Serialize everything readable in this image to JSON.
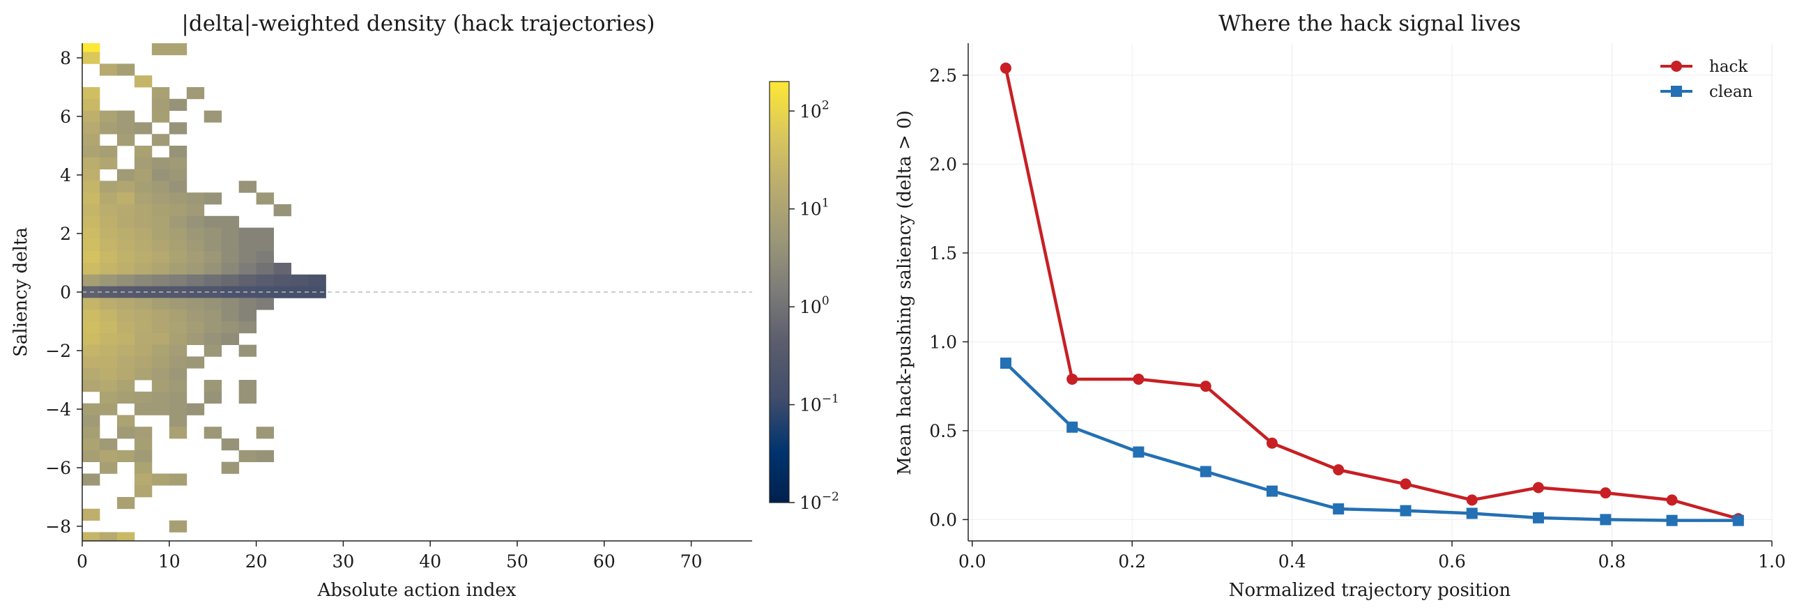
{
  "chart_data": [
    {
      "type": "heatmap",
      "title": "|delta|-weighted density (hack trajectories)",
      "xlabel": "Absolute action index",
      "ylabel": "Saliency delta",
      "xlim": [
        0,
        77
      ],
      "ylim": [
        -8.5,
        8.5
      ],
      "xticks": [
        0,
        10,
        20,
        30,
        40,
        50,
        60,
        70
      ],
      "yticks": [
        -8,
        -6,
        -4,
        -2,
        0,
        2,
        4,
        6,
        8
      ],
      "bin_width_x": 2,
      "bin_height_y": 0.4,
      "reference_line": 0,
      "colorbar": {
        "scale": "log",
        "colormap": "cividis",
        "vmin": 0.01,
        "vmax": 200,
        "ticks": [
          {
            "base": "10",
            "exp": "−2",
            "value": 0.01
          },
          {
            "base": "10",
            "exp": "−1",
            "value": 0.1
          },
          {
            "base": "10",
            "exp": "0",
            "value": 1
          },
          {
            "base": "10",
            "exp": "1",
            "value": 10
          },
          {
            "base": "10",
            "exp": "2",
            "value": 100
          }
        ]
      },
      "cells": [
        [
          0,
          8.2,
          200
        ],
        [
          0,
          7.8,
          60
        ],
        [
          2,
          7.4,
          15
        ],
        [
          4,
          7.4,
          8
        ],
        [
          8,
          8.2,
          10
        ],
        [
          10,
          8.2,
          10
        ],
        [
          6,
          7.0,
          25
        ],
        [
          0,
          6.6,
          40
        ],
        [
          8,
          6.6,
          9
        ],
        [
          12,
          6.6,
          6
        ],
        [
          0,
          6.2,
          30
        ],
        [
          8,
          6.2,
          7
        ],
        [
          10,
          6.2,
          4
        ],
        [
          0,
          5.8,
          20
        ],
        [
          2,
          5.8,
          10
        ],
        [
          4,
          5.8,
          6
        ],
        [
          8,
          5.8,
          8
        ],
        [
          14,
          5.8,
          5
        ],
        [
          0,
          5.4,
          15
        ],
        [
          2,
          5.4,
          8
        ],
        [
          4,
          5.4,
          6
        ],
        [
          6,
          5.4,
          5
        ],
        [
          10,
          5.4,
          4
        ],
        [
          0,
          5.0,
          12
        ],
        [
          4,
          5.0,
          7
        ],
        [
          8,
          5.0,
          6
        ],
        [
          0,
          4.6,
          10
        ],
        [
          2,
          4.6,
          8
        ],
        [
          6,
          4.6,
          9
        ],
        [
          10,
          4.6,
          4
        ],
        [
          0,
          4.2,
          18
        ],
        [
          2,
          4.2,
          12
        ],
        [
          6,
          4.2,
          7
        ],
        [
          8,
          4.2,
          5
        ],
        [
          10,
          4.2,
          6
        ],
        [
          0,
          3.8,
          20
        ],
        [
          4,
          3.8,
          6
        ],
        [
          6,
          3.8,
          9
        ],
        [
          8,
          3.8,
          4
        ],
        [
          10,
          3.8,
          5
        ],
        [
          0,
          3.4,
          25
        ],
        [
          2,
          3.4,
          10
        ],
        [
          4,
          3.4,
          12
        ],
        [
          6,
          3.4,
          8
        ],
        [
          8,
          3.4,
          6
        ],
        [
          10,
          3.4,
          4
        ],
        [
          18,
          3.4,
          4
        ],
        [
          0,
          3.0,
          30
        ],
        [
          2,
          3.0,
          14
        ],
        [
          4,
          3.0,
          20
        ],
        [
          6,
          3.0,
          10
        ],
        [
          8,
          3.0,
          7
        ],
        [
          10,
          3.0,
          6
        ],
        [
          12,
          3.0,
          5
        ],
        [
          14,
          3.0,
          4
        ],
        [
          20,
          3.0,
          5
        ],
        [
          0,
          2.6,
          25
        ],
        [
          2,
          2.6,
          18
        ],
        [
          4,
          2.6,
          15
        ],
        [
          6,
          2.6,
          12
        ],
        [
          8,
          2.6,
          9
        ],
        [
          10,
          2.6,
          8
        ],
        [
          12,
          2.6,
          6
        ],
        [
          22,
          2.6,
          4
        ],
        [
          0,
          2.2,
          30
        ],
        [
          2,
          2.2,
          20
        ],
        [
          4,
          2.2,
          14
        ],
        [
          6,
          2.2,
          12
        ],
        [
          8,
          2.2,
          10
        ],
        [
          10,
          2.2,
          6
        ],
        [
          12,
          2.2,
          4
        ],
        [
          14,
          2.2,
          3
        ],
        [
          16,
          2.2,
          3
        ],
        [
          0,
          1.8,
          35
        ],
        [
          2,
          1.8,
          22
        ],
        [
          4,
          1.8,
          18
        ],
        [
          6,
          1.8,
          14
        ],
        [
          8,
          1.8,
          10
        ],
        [
          10,
          1.8,
          8
        ],
        [
          12,
          1.8,
          5
        ],
        [
          14,
          1.8,
          4
        ],
        [
          16,
          1.8,
          3
        ],
        [
          18,
          1.8,
          2
        ],
        [
          20,
          1.8,
          2
        ],
        [
          0,
          1.4,
          40
        ],
        [
          2,
          1.4,
          25
        ],
        [
          4,
          1.4,
          20
        ],
        [
          6,
          1.4,
          16
        ],
        [
          8,
          1.4,
          12
        ],
        [
          10,
          1.4,
          9
        ],
        [
          12,
          1.4,
          6
        ],
        [
          14,
          1.4,
          4
        ],
        [
          16,
          1.4,
          3
        ],
        [
          18,
          1.4,
          2
        ],
        [
          20,
          1.4,
          2
        ],
        [
          0,
          1.0,
          45
        ],
        [
          2,
          1.0,
          30
        ],
        [
          4,
          1.0,
          22
        ],
        [
          6,
          1.0,
          18
        ],
        [
          8,
          1.0,
          14
        ],
        [
          10,
          1.0,
          10
        ],
        [
          12,
          1.0,
          7
        ],
        [
          14,
          1.0,
          5
        ],
        [
          16,
          1.0,
          3
        ],
        [
          18,
          1.0,
          2
        ],
        [
          20,
          1.0,
          1.5
        ],
        [
          0,
          0.6,
          35
        ],
        [
          2,
          0.6,
          25
        ],
        [
          4,
          0.6,
          20
        ],
        [
          6,
          0.6,
          15
        ],
        [
          8,
          0.6,
          11
        ],
        [
          10,
          0.6,
          8
        ],
        [
          12,
          0.6,
          6
        ],
        [
          14,
          0.6,
          4
        ],
        [
          16,
          0.6,
          2.5
        ],
        [
          18,
          0.6,
          1.5
        ],
        [
          20,
          0.6,
          1
        ],
        [
          22,
          0.6,
          0.6
        ],
        [
          0,
          0.2,
          8
        ],
        [
          2,
          0.2,
          5
        ],
        [
          4,
          0.2,
          3.5
        ],
        [
          6,
          0.2,
          2.5
        ],
        [
          8,
          0.2,
          2
        ],
        [
          10,
          0.2,
          1.6
        ],
        [
          12,
          0.2,
          1.2
        ],
        [
          14,
          0.2,
          0.9
        ],
        [
          16,
          0.2,
          0.7
        ],
        [
          18,
          0.2,
          0.5
        ],
        [
          20,
          0.2,
          0.4
        ],
        [
          22,
          0.2,
          0.3
        ],
        [
          24,
          0.2,
          0.25
        ],
        [
          26,
          0.2,
          0.2
        ],
        [
          0,
          -0.2,
          0.5
        ],
        [
          2,
          -0.2,
          0.4
        ],
        [
          4,
          -0.2,
          0.35
        ],
        [
          6,
          -0.2,
          0.3
        ],
        [
          8,
          -0.2,
          0.3
        ],
        [
          10,
          -0.2,
          0.3
        ],
        [
          12,
          -0.2,
          0.25
        ],
        [
          14,
          -0.2,
          0.25
        ],
        [
          16,
          -0.2,
          0.2
        ],
        [
          18,
          -0.2,
          0.2
        ],
        [
          20,
          -0.2,
          0.18
        ],
        [
          22,
          -0.2,
          0.16
        ],
        [
          24,
          -0.2,
          0.15
        ],
        [
          26,
          -0.2,
          0.15
        ],
        [
          0,
          -0.6,
          25
        ],
        [
          2,
          -0.6,
          18
        ],
        [
          4,
          -0.6,
          14
        ],
        [
          6,
          -0.6,
          11
        ],
        [
          8,
          -0.6,
          8
        ],
        [
          10,
          -0.6,
          6
        ],
        [
          12,
          -0.6,
          5
        ],
        [
          14,
          -0.6,
          4
        ],
        [
          16,
          -0.6,
          3
        ],
        [
          18,
          -0.6,
          2
        ],
        [
          20,
          -0.6,
          1.5
        ],
        [
          0,
          -1.0,
          35
        ],
        [
          2,
          -1.0,
          25
        ],
        [
          4,
          -1.0,
          18
        ],
        [
          6,
          -1.0,
          15
        ],
        [
          8,
          -1.0,
          12
        ],
        [
          10,
          -1.0,
          9
        ],
        [
          12,
          -1.0,
          6
        ],
        [
          14,
          -1.0,
          5
        ],
        [
          16,
          -1.0,
          3
        ],
        [
          18,
          -1.0,
          2
        ],
        [
          0,
          -1.4,
          40
        ],
        [
          2,
          -1.4,
          30
        ],
        [
          4,
          -1.4,
          20
        ],
        [
          6,
          -1.4,
          16
        ],
        [
          8,
          -1.4,
          12
        ],
        [
          10,
          -1.4,
          10
        ],
        [
          12,
          -1.4,
          7
        ],
        [
          14,
          -1.4,
          5
        ],
        [
          16,
          -1.4,
          4
        ],
        [
          18,
          -1.4,
          3
        ],
        [
          0,
          -1.8,
          35
        ],
        [
          2,
          -1.8,
          25
        ],
        [
          4,
          -1.8,
          22
        ],
        [
          6,
          -1.8,
          15
        ],
        [
          8,
          -1.8,
          14
        ],
        [
          10,
          -1.8,
          9
        ],
        [
          12,
          -1.8,
          6
        ],
        [
          14,
          -1.8,
          4
        ],
        [
          16,
          -1.8,
          3
        ],
        [
          0,
          -2.2,
          25
        ],
        [
          2,
          -2.2,
          22
        ],
        [
          4,
          -2.2,
          18
        ],
        [
          6,
          -2.2,
          14
        ],
        [
          8,
          -2.2,
          10
        ],
        [
          10,
          -2.2,
          7
        ],
        [
          14,
          -2.2,
          5
        ],
        [
          18,
          -2.2,
          4
        ],
        [
          0,
          -2.6,
          20
        ],
        [
          2,
          -2.6,
          20
        ],
        [
          4,
          -2.6,
          15
        ],
        [
          6,
          -2.6,
          12
        ],
        [
          8,
          -2.6,
          9
        ],
        [
          10,
          -2.6,
          6
        ],
        [
          12,
          -2.6,
          5
        ],
        [
          0,
          -3.0,
          15
        ],
        [
          2,
          -3.0,
          18
        ],
        [
          4,
          -3.0,
          14
        ],
        [
          6,
          -3.0,
          10
        ],
        [
          8,
          -3.0,
          7
        ],
        [
          10,
          -3.0,
          5
        ],
        [
          0,
          -3.4,
          12
        ],
        [
          2,
          -3.4,
          14
        ],
        [
          4,
          -3.4,
          10
        ],
        [
          8,
          -3.4,
          8
        ],
        [
          10,
          -3.4,
          6
        ],
        [
          14,
          -3.4,
          5
        ],
        [
          18,
          -3.4,
          4
        ],
        [
          2,
          -3.8,
          10
        ],
        [
          4,
          -3.8,
          8
        ],
        [
          6,
          -3.8,
          7
        ],
        [
          8,
          -3.8,
          6
        ],
        [
          10,
          -3.8,
          5
        ],
        [
          14,
          -3.8,
          4
        ],
        [
          18,
          -3.8,
          4
        ],
        [
          0,
          -4.2,
          8
        ],
        [
          2,
          -4.2,
          8
        ],
        [
          6,
          -4.2,
          6
        ],
        [
          8,
          -4.2,
          6
        ],
        [
          10,
          -4.2,
          5
        ],
        [
          12,
          -4.2,
          4
        ],
        [
          0,
          -4.6,
          6
        ],
        [
          4,
          -4.6,
          10
        ],
        [
          10,
          -4.6,
          5
        ],
        [
          0,
          -5.0,
          8
        ],
        [
          4,
          -5.0,
          6
        ],
        [
          6,
          -5.0,
          7
        ],
        [
          10,
          -5.0,
          9
        ],
        [
          14,
          -5.0,
          5
        ],
        [
          20,
          -5.0,
          5
        ],
        [
          0,
          -5.4,
          10
        ],
        [
          2,
          -5.4,
          6
        ],
        [
          6,
          -5.4,
          8
        ],
        [
          16,
          -5.4,
          4
        ],
        [
          0,
          -5.8,
          8
        ],
        [
          2,
          -5.8,
          12
        ],
        [
          4,
          -5.8,
          10
        ],
        [
          6,
          -5.8,
          6
        ],
        [
          18,
          -5.8,
          5
        ],
        [
          20,
          -5.8,
          4
        ],
        [
          2,
          -6.2,
          8
        ],
        [
          6,
          -6.2,
          10
        ],
        [
          16,
          -6.2,
          5
        ],
        [
          0,
          -6.6,
          5
        ],
        [
          6,
          -6.6,
          15
        ],
        [
          8,
          -6.6,
          10
        ],
        [
          10,
          -6.6,
          8
        ],
        [
          6,
          -7.0,
          12
        ],
        [
          4,
          -7.4,
          9
        ],
        [
          0,
          -7.8,
          20
        ],
        [
          10,
          -8.2,
          8
        ],
        [
          0,
          -8.6,
          25
        ],
        [
          2,
          -8.6,
          15
        ],
        [
          4,
          -8.6,
          30
        ]
      ]
    },
    {
      "type": "line",
      "title": "Where the hack signal lives",
      "xlabel": "Normalized trajectory position",
      "ylabel": "Mean hack-pushing saliency (delta > 0)",
      "xlim": [
        -0.005,
        1.0
      ],
      "ylim": [
        -0.12,
        2.68
      ],
      "xticks": [
        "0.0",
        "0.2",
        "0.4",
        "0.6",
        "0.8",
        "1.0"
      ],
      "yticks": [
        "0.0",
        "0.5",
        "1.0",
        "1.5",
        "2.0",
        "2.5"
      ],
      "grid": true,
      "legend_position": "top-right",
      "x": [
        0.042,
        0.125,
        0.208,
        0.292,
        0.375,
        0.458,
        0.542,
        0.625,
        0.708,
        0.792,
        0.875,
        0.958
      ],
      "series": [
        {
          "name": "hack",
          "color": "#c71f24",
          "marker": "circle",
          "values": [
            2.54,
            0.79,
            0.79,
            0.75,
            0.43,
            0.28,
            0.2,
            0.11,
            0.18,
            0.15,
            0.11,
            0.005
          ]
        },
        {
          "name": "clean",
          "color": "#2370b4",
          "marker": "square",
          "values": [
            0.88,
            0.52,
            0.38,
            0.27,
            0.16,
            0.06,
            0.05,
            0.035,
            0.01,
            0.0,
            -0.005,
            -0.005
          ]
        }
      ]
    }
  ]
}
